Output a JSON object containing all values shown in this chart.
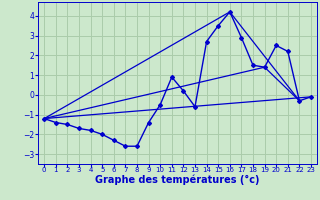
{
  "background_color": "#cce8cc",
  "grid_color": "#aaccaa",
  "line_color": "#0000cc",
  "xlabel": "Graphe des températures (°c)",
  "xlabel_fontsize": 7,
  "ylim": [
    -3.5,
    4.7
  ],
  "xlim": [
    -0.5,
    23.5
  ],
  "yticks": [
    -3,
    -2,
    -1,
    0,
    1,
    2,
    3,
    4
  ],
  "xticks": [
    0,
    1,
    2,
    3,
    4,
    5,
    6,
    7,
    8,
    9,
    10,
    11,
    12,
    13,
    14,
    15,
    16,
    17,
    18,
    19,
    20,
    21,
    22,
    23
  ],
  "series1_x": [
    0,
    1,
    2,
    3,
    4,
    5,
    6,
    7,
    8,
    9,
    10,
    11,
    12,
    13,
    14,
    15,
    16,
    17,
    18,
    19,
    20,
    21,
    22,
    23
  ],
  "series1_y": [
    -1.2,
    -1.4,
    -1.5,
    -1.7,
    -1.8,
    -2.0,
    -2.3,
    -2.6,
    -2.6,
    -1.4,
    -0.5,
    0.9,
    0.2,
    -0.6,
    2.7,
    3.5,
    4.2,
    2.9,
    1.5,
    1.4,
    2.5,
    2.2,
    -0.3,
    -0.1
  ],
  "series2_x": [
    0,
    23
  ],
  "series2_y": [
    -1.2,
    -0.1
  ],
  "series3_x": [
    0,
    16,
    22
  ],
  "series3_y": [
    -1.2,
    4.2,
    -0.3
  ],
  "series4_x": [
    0,
    19,
    22
  ],
  "series4_y": [
    -1.2,
    1.4,
    -0.3
  ]
}
